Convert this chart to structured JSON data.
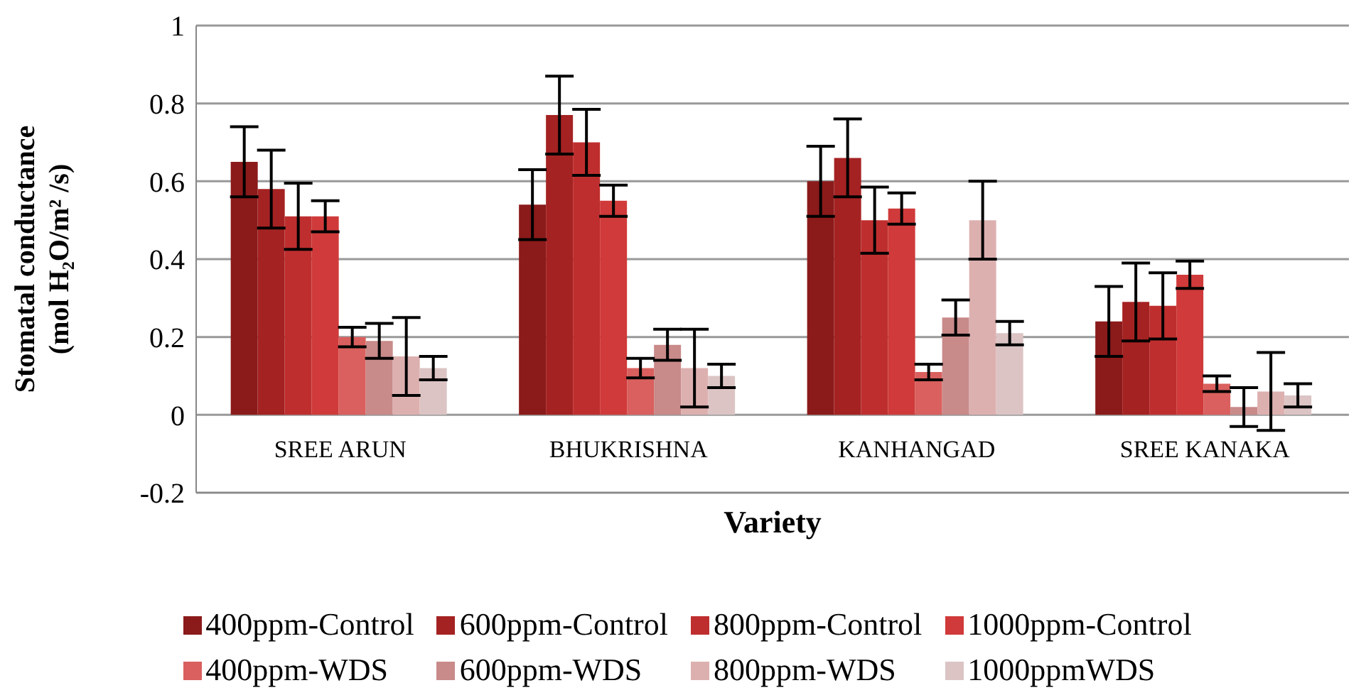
{
  "chart_data": {
    "type": "bar",
    "xlabel": "Variety",
    "ylabel": "Stomatal conductance (mol H₂O/m² /s)",
    "categories": [
      "SREE ARUN",
      "BHUKRISHNA",
      "KANHANGAD",
      "SREE KANAKA"
    ],
    "series": [
      {
        "name": "400ppm-Control",
        "color": "#8b1a1a",
        "values": [
          0.65,
          0.54,
          0.6,
          0.24
        ],
        "errors": [
          0.09,
          0.09,
          0.09,
          0.09
        ]
      },
      {
        "name": "600ppm-Control",
        "color": "#a52222",
        "values": [
          0.58,
          0.77,
          0.66,
          0.29
        ],
        "errors": [
          0.1,
          0.1,
          0.1,
          0.1
        ]
      },
      {
        "name": "800ppm-Control",
        "color": "#bf2e2e",
        "values": [
          0.51,
          0.7,
          0.5,
          0.28
        ],
        "errors": [
          0.085,
          0.085,
          0.085,
          0.085
        ]
      },
      {
        "name": "1000ppm-Control",
        "color": "#d03a3a",
        "values": [
          0.51,
          0.55,
          0.53,
          0.36
        ],
        "errors": [
          0.04,
          0.04,
          0.04,
          0.035
        ]
      },
      {
        "name": "400ppm-WDS",
        "color": "#d9605e",
        "values": [
          0.2,
          0.12,
          0.11,
          0.08
        ],
        "errors": [
          0.025,
          0.025,
          0.02,
          0.02
        ]
      },
      {
        "name": "600ppm-WDS",
        "color": "#c98a8a",
        "values": [
          0.19,
          0.18,
          0.25,
          0.02
        ],
        "errors": [
          0.045,
          0.04,
          0.045,
          0.05
        ]
      },
      {
        "name": "800ppm-WDS",
        "color": "#ddb0b0",
        "values": [
          0.15,
          0.12,
          0.5,
          0.06
        ],
        "errors": [
          0.1,
          0.1,
          0.1,
          0.1
        ]
      },
      {
        "name": "1000ppmWDS",
        "color": "#dcc4c4",
        "values": [
          0.12,
          0.1,
          0.21,
          0.05
        ],
        "errors": [
          0.03,
          0.03,
          0.03,
          0.03
        ]
      }
    ],
    "ylim": [
      -0.2,
      1
    ],
    "yticks": [
      -0.2,
      0,
      0.2,
      0.4,
      0.6,
      0.8,
      1
    ],
    "grid": "y",
    "legend": "bottom"
  }
}
